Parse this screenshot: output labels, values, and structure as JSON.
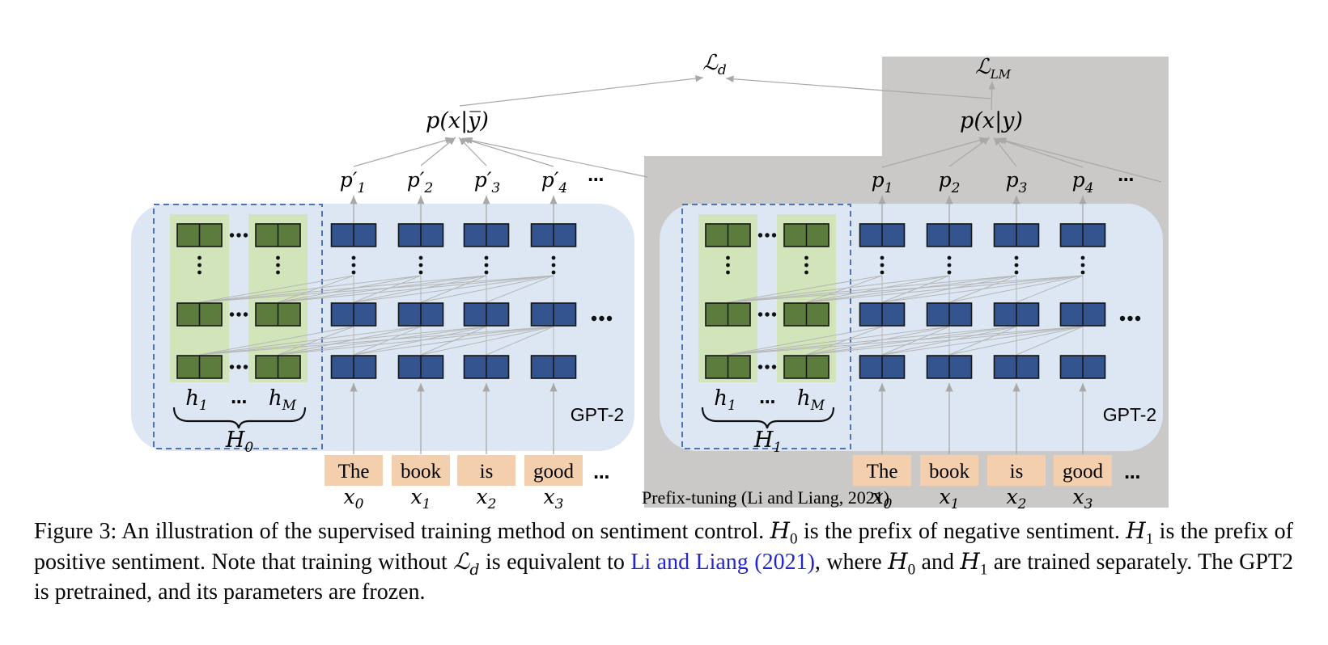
{
  "colors": {
    "panel_blue": "#dce7f3",
    "strip_green": "#d2e4ba",
    "block_green": "#5b7c3c",
    "block_blue": "#33548f",
    "token_peach": "#f4cfae",
    "background_gray": "#cac9c7",
    "dashed_border": "#4f74b5",
    "line_gray": "#b6b6b6",
    "arrow_gray": "#a8a8a8",
    "citation_blue": "#2525cd"
  },
  "losses": {
    "Ld_base": "ℒ",
    "Ld_sub": "d",
    "Llm_base": "ℒ",
    "Llm_sub": "LM"
  },
  "left_panel": {
    "prob_label": "p(x|y̅)",
    "p_labels": [
      {
        "base": "p′",
        "sub": "1"
      },
      {
        "base": "p′",
        "sub": "2"
      },
      {
        "base": "p′",
        "sub": "3"
      },
      {
        "base": "p′",
        "sub": "4"
      }
    ],
    "h1": {
      "base": "h",
      "sub": "1"
    },
    "hM": {
      "base": "h",
      "sub": "M"
    },
    "H": {
      "base": "H",
      "sub": "0"
    },
    "gpt": "GPT-2"
  },
  "right_panel": {
    "prob_label": "p(x|y)",
    "p_labels": [
      {
        "base": "p",
        "sub": "1"
      },
      {
        "base": "p",
        "sub": "2"
      },
      {
        "base": "p",
        "sub": "3"
      },
      {
        "base": "p",
        "sub": "4"
      }
    ],
    "h1": {
      "base": "h",
      "sub": "1"
    },
    "hM": {
      "base": "h",
      "sub": "M"
    },
    "H": {
      "base": "H",
      "sub": "1"
    },
    "gpt": "GPT-2",
    "method_label": "Prefix-tuning (Li and Liang, 2021)"
  },
  "tokens": {
    "words": [
      "The",
      "book",
      "is",
      "good"
    ],
    "x_labels": [
      {
        "base": "x",
        "sub": "0"
      },
      {
        "base": "x",
        "sub": "1"
      },
      {
        "base": "x",
        "sub": "2"
      },
      {
        "base": "x",
        "sub": "3"
      }
    ]
  },
  "glyphs": {
    "ellipsis": "…"
  },
  "caption": {
    "fig": "Figure 3: An illustration of the supervised training method on sentiment control. ",
    "H": "H",
    "sub0": "0",
    "sub1": "1",
    "seg2": " is the prefix of negative sentiment. ",
    "seg3": " is the prefix of positive sentiment. Note that training without ",
    "L": "ℒ",
    "subd": "d",
    "seg4": " is equivalent to ",
    "link": "Li and Liang (2021)",
    "seg5": ", where ",
    "seg6": " and ",
    "seg7": " are trained separately. The GPT2 is pretrained, and its parameters are frozen."
  }
}
